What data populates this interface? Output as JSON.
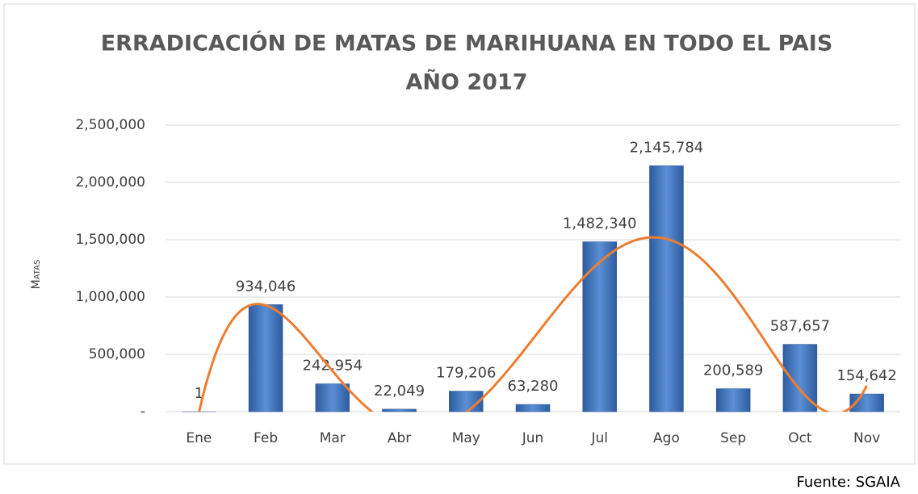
{
  "chart_data": {
    "type": "bar",
    "title": "ERRADICACIÓN DE MATAS DE MARIHUANA EN TODO EL PAIS",
    "subtitle": "AÑO 2017",
    "y_label": "Matas",
    "source": "Fuente: SGAIA",
    "categories": [
      "Ene",
      "Feb",
      "Mar",
      "Abr",
      "May",
      "Jun",
      "Jul",
      "Ago",
      "Sep",
      "Oct",
      "Nov"
    ],
    "values": [
      1,
      934046,
      242954,
      22049,
      179206,
      63280,
      1482340,
      2145784,
      200589,
      587657,
      154642
    ],
    "value_labels": [
      "1",
      "934,046",
      "242,954",
      "22,049",
      "179,206",
      "63,280",
      "1,482,340",
      "2,145,784",
      "200,589",
      "587,657",
      "154,642"
    ],
    "color": "#4472c4",
    "trendline": {
      "type": "polynomial",
      "order": 6,
      "color": "#ed7d31"
    },
    "ylim": [
      0,
      2500000
    ],
    "yticks": [
      {
        "value": 0,
        "label": "-"
      },
      {
        "value": 500000,
        "label": "500,000"
      },
      {
        "value": 1000000,
        "label": "1,000,000"
      },
      {
        "value": 1500000,
        "label": "1,500,000"
      },
      {
        "value": 2000000,
        "label": "2,000,000"
      },
      {
        "value": 2500000,
        "label": "2,500,000"
      }
    ],
    "grid": true
  }
}
